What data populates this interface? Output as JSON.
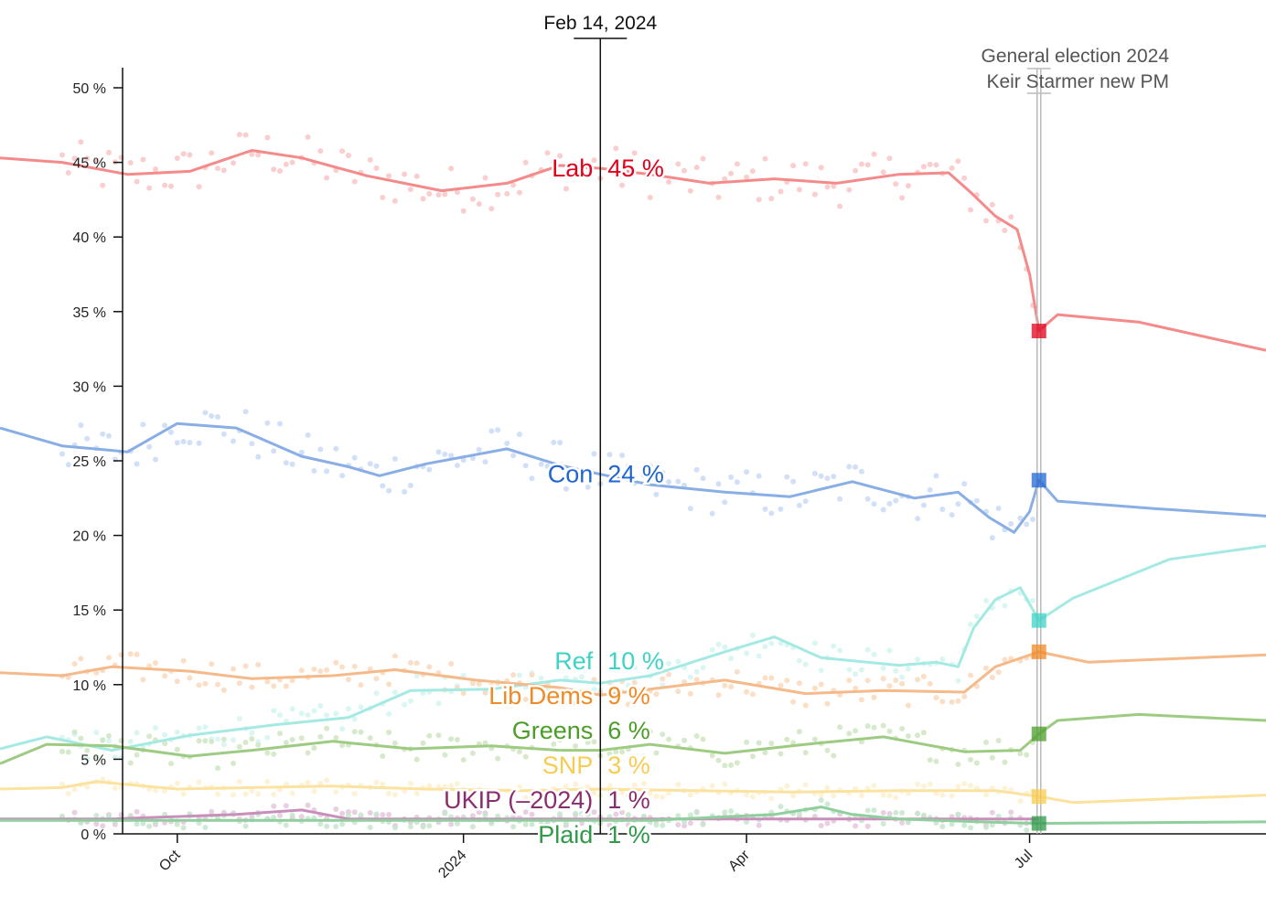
{
  "chart_data": {
    "type": "line",
    "y_unit": "%",
    "ylim": [
      0,
      51.5
    ],
    "y_ticks": [
      0,
      5,
      10,
      15,
      20,
      25,
      30,
      35,
      40,
      45,
      50
    ],
    "y_tick_labels": [
      "0 %",
      "5 %",
      "10 %",
      "15 %",
      "20 %",
      "25 %",
      "30 %",
      "35 %",
      "40 %",
      "45 %",
      "50 %"
    ],
    "xlim": [
      "2023-08-05",
      "2024-09-15"
    ],
    "x_ticks": [
      {
        "date": "2023-10-01",
        "label": "Oct"
      },
      {
        "date": "2024-01-01",
        "label": "2024"
      },
      {
        "date": "2024-04-01",
        "label": "Apr"
      },
      {
        "date": "2024-07-01",
        "label": "Jul"
      }
    ],
    "cursor": {
      "date": "2024-02-14",
      "label": "Feb 14, 2024"
    },
    "annotation": {
      "date": "2024-07-04",
      "lines": [
        "General election 2024",
        "Keir Starmer new PM"
      ]
    },
    "grid": false,
    "legend": "inline labels at cursor",
    "series": [
      {
        "name": "Lab",
        "color": "#e3001b",
        "line_color": "#f48a8a",
        "dot_color": "#f9c6c6",
        "cursor_value": "45 %",
        "label_value": 44.6,
        "election_result": 33.7,
        "points": [
          [
            "2023-08-05",
            45.3
          ],
          [
            "2023-08-25",
            45.0
          ],
          [
            "2023-09-15",
            44.2
          ],
          [
            "2023-10-05",
            44.4
          ],
          [
            "2023-10-25",
            45.8
          ],
          [
            "2023-11-10",
            45.3
          ],
          [
            "2023-12-01",
            44.1
          ],
          [
            "2023-12-25",
            43.1
          ],
          [
            "2024-01-15",
            43.6
          ],
          [
            "2024-02-01",
            44.8
          ],
          [
            "2024-02-14",
            44.6
          ],
          [
            "2024-03-01",
            44.2
          ],
          [
            "2024-03-20",
            43.6
          ],
          [
            "2024-04-10",
            43.9
          ],
          [
            "2024-04-30",
            43.6
          ],
          [
            "2024-05-20",
            44.2
          ],
          [
            "2024-06-05",
            44.3
          ],
          [
            "2024-06-12",
            43.0
          ],
          [
            "2024-06-20",
            41.4
          ],
          [
            "2024-06-27",
            40.5
          ],
          [
            "2024-07-01",
            37.5
          ],
          [
            "2024-07-04",
            33.7
          ],
          [
            "2024-07-10",
            34.8
          ],
          [
            "2024-08-05",
            34.3
          ],
          [
            "2024-09-15",
            32.4
          ]
        ]
      },
      {
        "name": "Con",
        "color": "#1f66d3",
        "line_color": "#89aee6",
        "dot_color": "#c9daf4",
        "cursor_value": "24 %",
        "label_value": 24.1,
        "election_result": 23.7,
        "points": [
          [
            "2023-08-05",
            27.2
          ],
          [
            "2023-08-25",
            26.0
          ],
          [
            "2023-09-15",
            25.6
          ],
          [
            "2023-10-01",
            27.5
          ],
          [
            "2023-10-20",
            27.2
          ],
          [
            "2023-11-10",
            25.3
          ],
          [
            "2023-11-25",
            24.6
          ],
          [
            "2023-12-05",
            24.0
          ],
          [
            "2023-12-20",
            24.8
          ],
          [
            "2024-01-15",
            25.8
          ],
          [
            "2024-02-01",
            24.7
          ],
          [
            "2024-02-14",
            24.1
          ],
          [
            "2024-03-01",
            23.4
          ],
          [
            "2024-03-25",
            22.9
          ],
          [
            "2024-04-15",
            22.6
          ],
          [
            "2024-05-05",
            23.6
          ],
          [
            "2024-05-25",
            22.5
          ],
          [
            "2024-06-08",
            22.9
          ],
          [
            "2024-06-18",
            21.2
          ],
          [
            "2024-06-26",
            20.2
          ],
          [
            "2024-07-01",
            21.6
          ],
          [
            "2024-07-04",
            23.7
          ],
          [
            "2024-07-10",
            22.3
          ],
          [
            "2024-08-10",
            21.8
          ],
          [
            "2024-09-15",
            21.3
          ]
        ]
      },
      {
        "name": "Ref",
        "color": "#3ed3c6",
        "line_color": "#a5e9e3",
        "dot_color": "#d4f4f1",
        "cursor_value": "10 %",
        "label_value": 10.1,
        "election_result": 14.3,
        "points": [
          [
            "2023-08-05",
            5.7
          ],
          [
            "2023-08-20",
            6.5
          ],
          [
            "2023-09-10",
            5.6
          ],
          [
            "2023-10-05",
            6.6
          ],
          [
            "2023-11-01",
            7.3
          ],
          [
            "2023-11-25",
            7.8
          ],
          [
            "2023-12-15",
            9.6
          ],
          [
            "2024-01-10",
            9.7
          ],
          [
            "2024-02-01",
            10.3
          ],
          [
            "2024-02-14",
            10.1
          ],
          [
            "2024-03-01",
            10.6
          ],
          [
            "2024-03-25",
            12.2
          ],
          [
            "2024-04-10",
            13.2
          ],
          [
            "2024-04-25",
            11.8
          ],
          [
            "2024-05-20",
            11.3
          ],
          [
            "2024-06-01",
            11.5
          ],
          [
            "2024-06-08",
            11.2
          ],
          [
            "2024-06-13",
            13.8
          ],
          [
            "2024-06-20",
            15.7
          ],
          [
            "2024-06-28",
            16.5
          ],
          [
            "2024-07-04",
            14.3
          ],
          [
            "2024-07-15",
            15.8
          ],
          [
            "2024-08-15",
            18.4
          ],
          [
            "2024-09-15",
            19.3
          ]
        ]
      },
      {
        "name": "Lib Dems",
        "color": "#f08a24",
        "line_color": "#f5b98a",
        "dot_color": "#fad8bc",
        "cursor_value": "9 %",
        "label_value": 9.3,
        "election_result": 12.2,
        "points": [
          [
            "2023-08-05",
            10.8
          ],
          [
            "2023-08-25",
            10.6
          ],
          [
            "2023-09-10",
            11.2
          ],
          [
            "2023-10-05",
            10.9
          ],
          [
            "2023-10-25",
            10.4
          ],
          [
            "2023-11-20",
            10.6
          ],
          [
            "2023-12-10",
            11.0
          ],
          [
            "2024-01-05",
            10.3
          ],
          [
            "2024-02-01",
            9.8
          ],
          [
            "2024-02-14",
            9.3
          ],
          [
            "2024-03-01",
            9.7
          ],
          [
            "2024-03-25",
            10.3
          ],
          [
            "2024-04-20",
            9.4
          ],
          [
            "2024-05-15",
            9.6
          ],
          [
            "2024-06-10",
            9.5
          ],
          [
            "2024-06-20",
            11.2
          ],
          [
            "2024-07-04",
            12.2
          ],
          [
            "2024-07-20",
            11.5
          ],
          [
            "2024-09-15",
            12.0
          ]
        ]
      },
      {
        "name": "Greens",
        "color": "#4a9e28",
        "line_color": "#9ecb82",
        "dot_color": "#cfe5c1",
        "cursor_value": "6 %",
        "label_value": 5.6,
        "election_result": 6.7,
        "points": [
          [
            "2023-08-05",
            4.7
          ],
          [
            "2023-08-20",
            6.0
          ],
          [
            "2023-09-10",
            5.9
          ],
          [
            "2023-10-05",
            5.2
          ],
          [
            "2023-10-25",
            5.6
          ],
          [
            "2023-11-20",
            6.2
          ],
          [
            "2023-12-15",
            5.7
          ],
          [
            "2024-01-10",
            5.9
          ],
          [
            "2024-02-01",
            5.6
          ],
          [
            "2024-02-14",
            5.6
          ],
          [
            "2024-03-01",
            6.0
          ],
          [
            "2024-03-25",
            5.4
          ],
          [
            "2024-04-20",
            6.0
          ],
          [
            "2024-05-15",
            6.5
          ],
          [
            "2024-06-10",
            5.5
          ],
          [
            "2024-06-28",
            5.6
          ],
          [
            "2024-07-04",
            6.7
          ],
          [
            "2024-07-10",
            7.6
          ],
          [
            "2024-08-05",
            8.0
          ],
          [
            "2024-09-15",
            7.6
          ]
        ]
      },
      {
        "name": "SNP",
        "color": "#f8cc52",
        "line_color": "#fbe29f",
        "dot_color": "#fdf0cf",
        "cursor_value": "3 %",
        "label_value": 3.0,
        "election_result": 2.5,
        "points": [
          [
            "2023-08-05",
            3.0
          ],
          [
            "2023-08-25",
            3.1
          ],
          [
            "2023-09-05",
            3.5
          ],
          [
            "2023-10-01",
            3.0
          ],
          [
            "2023-10-25",
            3.1
          ],
          [
            "2023-11-20",
            3.2
          ],
          [
            "2023-12-20",
            3.0
          ],
          [
            "2024-01-20",
            2.9
          ],
          [
            "2024-02-14",
            3.0
          ],
          [
            "2024-03-15",
            2.9
          ],
          [
            "2024-04-15",
            2.8
          ],
          [
            "2024-05-20",
            2.9
          ],
          [
            "2024-06-20",
            2.9
          ],
          [
            "2024-07-04",
            2.5
          ],
          [
            "2024-07-15",
            2.1
          ],
          [
            "2024-09-15",
            2.6
          ]
        ]
      },
      {
        "name": "UKIP (–2024)",
        "color": "#8a2d6f",
        "line_color": "#c98fbb",
        "dot_color": "#e4c7dc",
        "cursor_value": "1 %",
        "label_value": 1.0,
        "election_result": null,
        "points": [
          [
            "2023-08-05",
            1.0
          ],
          [
            "2023-09-10",
            1.0
          ],
          [
            "2023-10-20",
            1.3
          ],
          [
            "2023-11-10",
            1.6
          ],
          [
            "2023-11-25",
            1.0
          ],
          [
            "2024-01-01",
            1.0
          ],
          [
            "2024-03-01",
            1.0
          ],
          [
            "2024-07-04",
            1.0
          ]
        ]
      },
      {
        "name": "Plaid",
        "color": "#2f9a48",
        "line_color": "#8fcf9e",
        "dot_color": "#c6e6ce",
        "cursor_value": "1 %",
        "label_value": 0.9,
        "election_result": 0.7,
        "points": [
          [
            "2023-08-05",
            0.9
          ],
          [
            "2024-03-01",
            0.9
          ],
          [
            "2024-04-10",
            1.3
          ],
          [
            "2024-04-25",
            1.8
          ],
          [
            "2024-05-05",
            1.3
          ],
          [
            "2024-05-20",
            1.0
          ],
          [
            "2024-06-15",
            0.8
          ],
          [
            "2024-07-04",
            0.7
          ],
          [
            "2024-09-15",
            0.8
          ]
        ]
      }
    ]
  }
}
